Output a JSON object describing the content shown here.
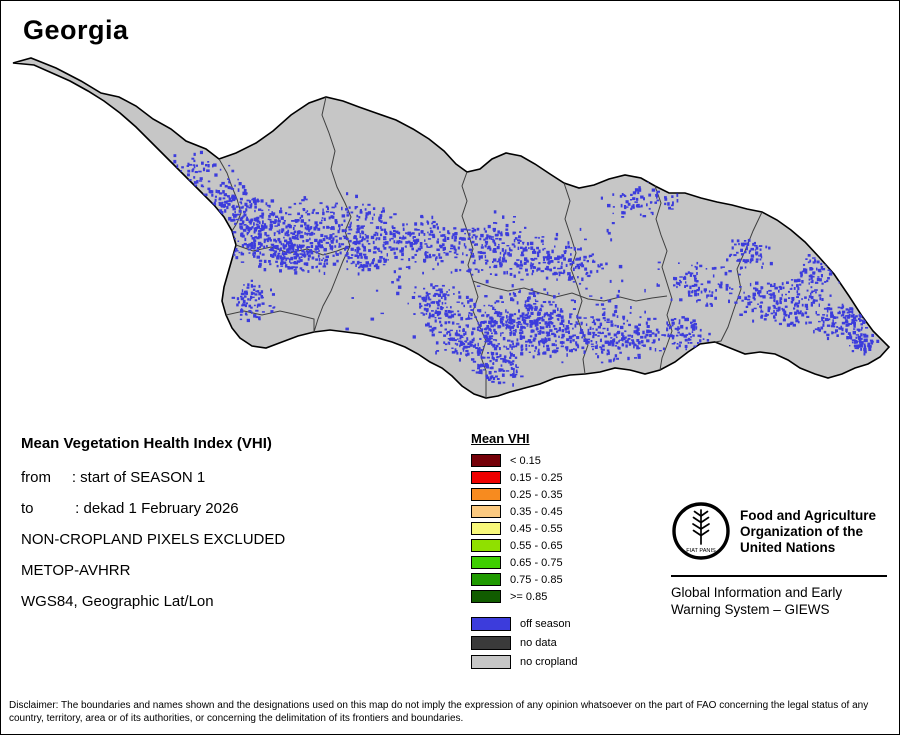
{
  "title": "Georgia",
  "info": {
    "heading": "Mean Vegetation Health Index (VHI)",
    "lines": [
      {
        "text": "from     : start of SEASON 1"
      },
      {
        "text": "to          : dekad 1 February 2026"
      },
      {
        "text": "NON-CROPLAND PIXELS EXCLUDED"
      },
      {
        "text": "METOP-AVHRR"
      },
      {
        "text": "WGS84, Geographic Lat/Lon"
      }
    ]
  },
  "legend": {
    "title": "Mean VHI",
    "classes": [
      {
        "label": "< 0.15",
        "color": "#750008"
      },
      {
        "label": "0.15 - 0.25",
        "color": "#ee0000"
      },
      {
        "label": "0.25 - 0.35",
        "color": "#f78b1f"
      },
      {
        "label": "0.35 - 0.45",
        "color": "#fbc980"
      },
      {
        "label": "0.45 - 0.55",
        "color": "#f8f87a"
      },
      {
        "label": "0.55 - 0.65",
        "color": "#90e000"
      },
      {
        "label": "0.65 - 0.75",
        "color": "#3ecf00"
      },
      {
        "label": "0.75 - 0.85",
        "color": "#1f9a00"
      },
      {
        "label": ">= 0.85",
        "color": "#115c00"
      }
    ],
    "extra": [
      {
        "label": "off season",
        "color": "#3c3cdc"
      },
      {
        "label": "no data",
        "color": "#3a3a3a"
      },
      {
        "label": "no cropland",
        "color": "#c6c6c6"
      }
    ]
  },
  "org": {
    "fao_name": "Food and Agriculture Organization of the United Nations",
    "motto": "FIAT PANIS",
    "giews": "Global Information and Early Warning System – GIEWS"
  },
  "disclaimer": "Disclaimer: The boundaries and names shown and the designations used on this map do not imply the expression of any opinion whatsoever on the part of FAO concerning the legal status of any country, territory, area or of its authorities, or concerning the delimitation of its frontiers and boundaries."
}
